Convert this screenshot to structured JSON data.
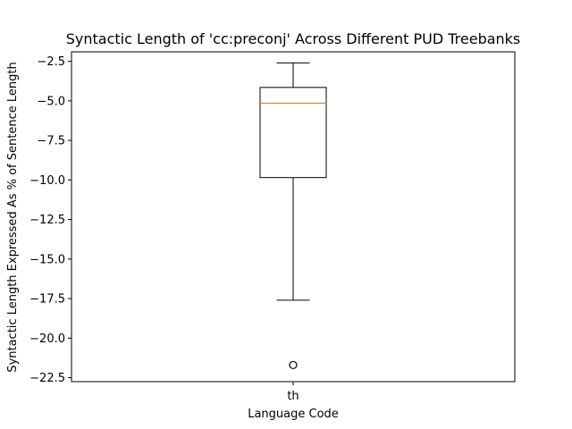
{
  "chart_data": {
    "type": "box",
    "title": "Syntactic Length of 'cc:preconj' Across Different PUD Treebanks",
    "xlabel": "Language Code",
    "ylabel": "Syntactic Length Expressed As % of Sentence Length",
    "categories": [
      "th"
    ],
    "ylim": [
      -22.75,
      -1.9
    ],
    "yticks": [
      -2.5,
      -5.0,
      -7.5,
      -10.0,
      -12.5,
      -15.0,
      -17.5,
      -20.0,
      -22.5
    ],
    "ytick_labels": [
      "−2.5",
      "−5.0",
      "−7.5",
      "−10.0",
      "−12.5",
      "−15.0",
      "−17.5",
      "−20.0",
      "−22.5"
    ],
    "boxes": [
      {
        "category": "th",
        "whisker_low": -17.6,
        "q1": -9.85,
        "median": -5.15,
        "q3": -4.15,
        "whisker_high": -2.6,
        "outliers": [
          -21.7
        ]
      }
    ],
    "grid": false,
    "colors": {
      "box": "#000000",
      "median": "#ff7f0e"
    }
  }
}
